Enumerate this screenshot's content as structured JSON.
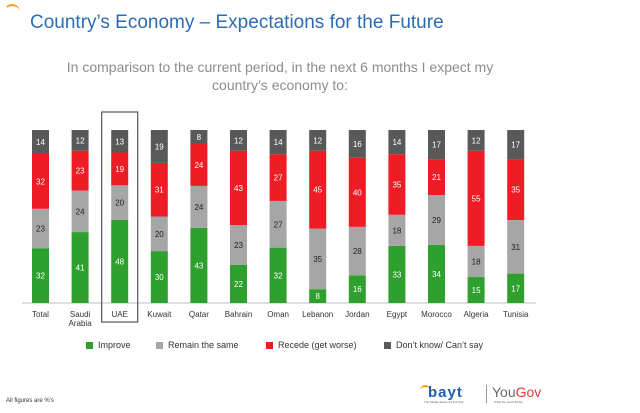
{
  "header": {
    "title": "Country’s Economy – Expectations for the Future",
    "subtitle_line1": "In comparison to the current period, in the next 6 months I expect my",
    "subtitle_line2": "country’s economy to:"
  },
  "colors": {
    "Improve": "#2ea02e",
    "Remain the same": "#a6a6a6",
    "Recede (get worse)": "#ee1c25",
    "Don’t know/ Can’t say": "#595959",
    "title": "#2a6db5",
    "highlight_box": "#555555"
  },
  "chart_data": {
    "type": "bar",
    "stacked": true,
    "percent": true,
    "categories": [
      "Total",
      "Saudi Arabia",
      "UAE",
      "Kuwait",
      "Qatar",
      "Bahrain",
      "Oman",
      "Lebanon",
      "Jordan",
      "Egypt",
      "Morocco",
      "Algeria",
      "Tunisia"
    ],
    "category_lines": [
      [
        "Total"
      ],
      [
        "Saudi",
        "Arabia"
      ],
      [
        "UAE"
      ],
      [
        "Kuwait"
      ],
      [
        "Qatar"
      ],
      [
        "Bahrain"
      ],
      [
        "Oman"
      ],
      [
        "Lebanon"
      ],
      [
        "Jordan"
      ],
      [
        "Egypt"
      ],
      [
        "Morocco"
      ],
      [
        "Algeria"
      ],
      [
        "Tunisia"
      ]
    ],
    "highlighted_category": "UAE",
    "series": [
      {
        "name": "Improve",
        "values": [
          32,
          41,
          48,
          30,
          43,
          22,
          32,
          8,
          16,
          33,
          34,
          15,
          17
        ]
      },
      {
        "name": "Remain the same",
        "values": [
          23,
          24,
          20,
          20,
          24,
          23,
          27,
          35,
          28,
          18,
          29,
          18,
          31
        ]
      },
      {
        "name": "Recede (get worse)",
        "values": [
          32,
          23,
          19,
          31,
          24,
          43,
          27,
          45,
          40,
          35,
          21,
          55,
          35
        ]
      },
      {
        "name": "Don’t know/ Can’t say",
        "values": [
          14,
          12,
          13,
          19,
          8,
          12,
          14,
          12,
          16,
          14,
          17,
          12,
          17
        ]
      }
    ],
    "ylim": [
      0,
      100
    ],
    "grid": false,
    "legend_position": "bottom"
  },
  "legend": [
    {
      "label": "Improve",
      "color": "#2ea02e"
    },
    {
      "label": "Remain the same",
      "color": "#a6a6a6"
    },
    {
      "label": "Recede (get worse)",
      "color": "#ee1c25"
    },
    {
      "label": "Don’t know/ Can’t say",
      "color": "#595959"
    }
  ],
  "footer": {
    "note": "All figures are %'s",
    "logo_bayt": "bayt",
    "logo_bayt_tagline": "The Middle East's #1 Job Site",
    "logo_yougov_you": "You",
    "logo_yougov_gov": "Gov",
    "logo_yougov_tagline": "What the world thinks"
  }
}
